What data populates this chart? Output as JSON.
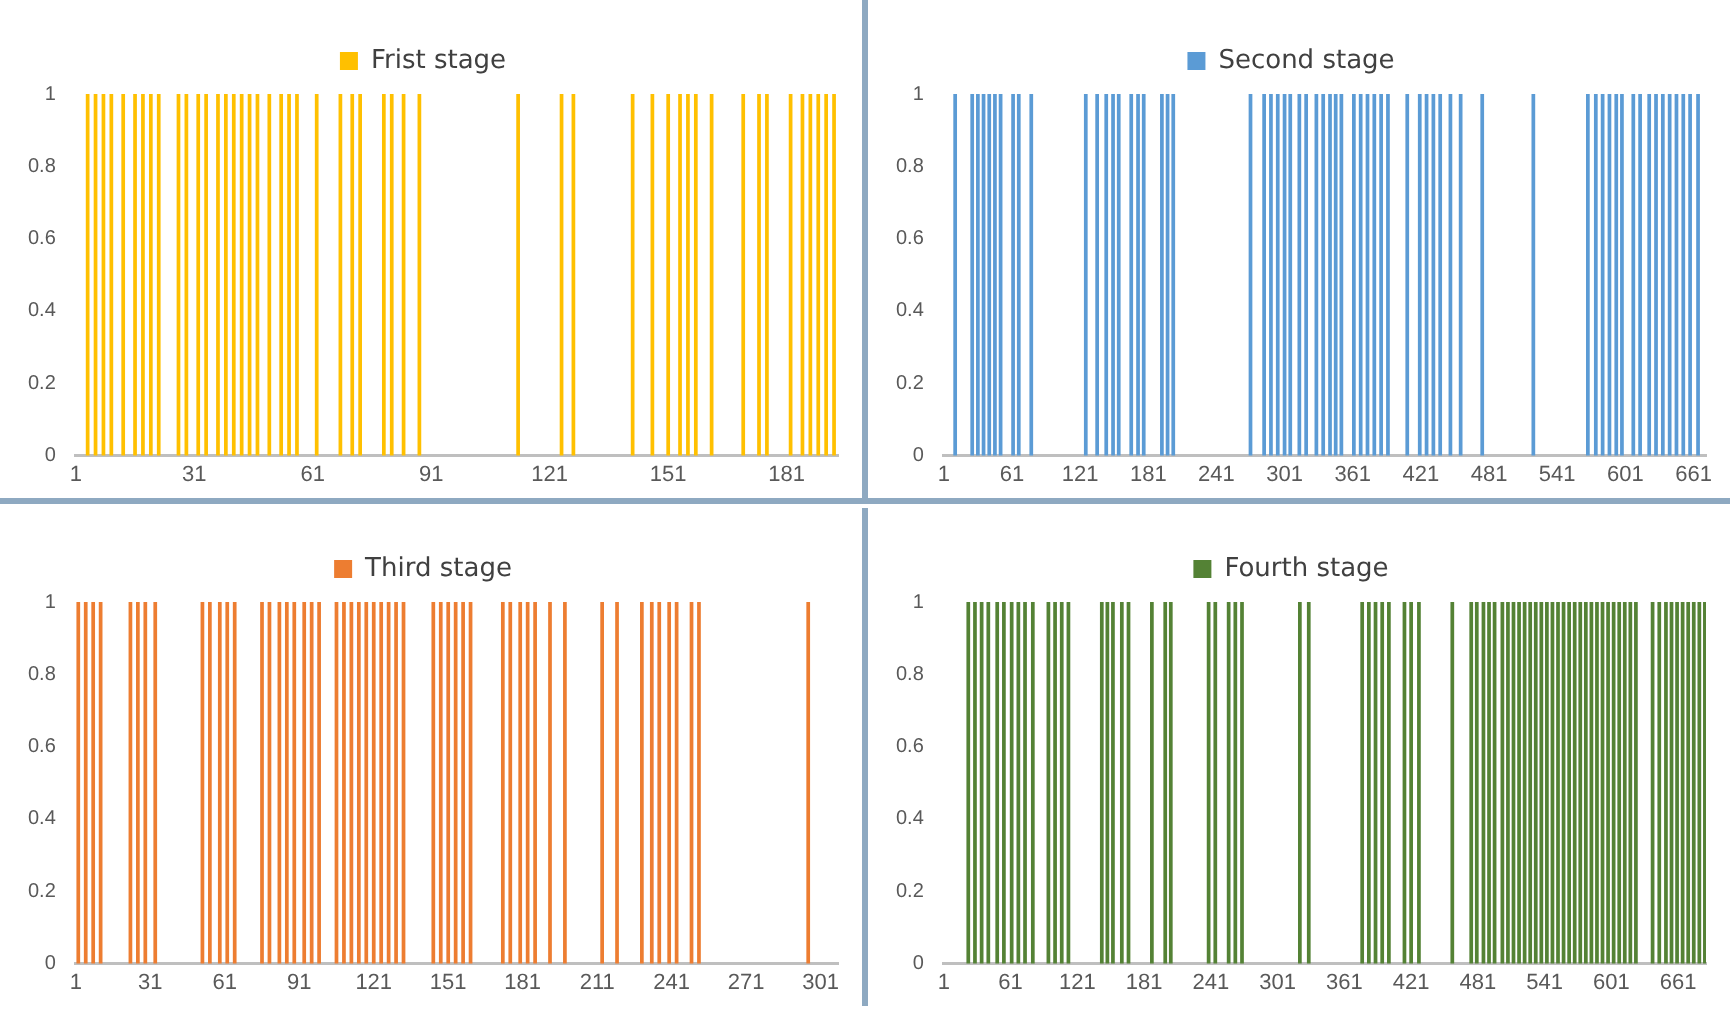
{
  "chart_data": [
    {
      "type": "bar",
      "xlim": [
        1,
        194
      ],
      "xticks": [
        1,
        31,
        61,
        91,
        121,
        151,
        181
      ],
      "ylim": [
        0,
        1
      ],
      "yticks": [
        0,
        0.2,
        0.4,
        0.6,
        0.8,
        1
      ],
      "legend": "top",
      "x": [
        4,
        6,
        8,
        10,
        13,
        16,
        18,
        20,
        22,
        27,
        29,
        32,
        34,
        37,
        39,
        41,
        43,
        45,
        47,
        50,
        53,
        55,
        57,
        62,
        68,
        71,
        73,
        79,
        81,
        84,
        88,
        113,
        124,
        127,
        142,
        147,
        151,
        154,
        156,
        158,
        162,
        170,
        174,
        176,
        182,
        185,
        187,
        189,
        191,
        193
      ],
      "series": [
        {
          "name": "Frist stage",
          "color": "#ffc000",
          "values": [
            1,
            1,
            1,
            1,
            1,
            1,
            1,
            1,
            1,
            1,
            1,
            1,
            1,
            1,
            1,
            1,
            1,
            1,
            1,
            1,
            1,
            1,
            1,
            1,
            1,
            1,
            1,
            1,
            1,
            1,
            1,
            1,
            1,
            1,
            1,
            1,
            1,
            1,
            1,
            1,
            1,
            1,
            1,
            1,
            1,
            1,
            1,
            1,
            1,
            1
          ]
        }
      ]
    },
    {
      "type": "bar",
      "xlim": [
        1,
        672
      ],
      "xticks": [
        1,
        61,
        121,
        181,
        241,
        301,
        361,
        421,
        481,
        541,
        601,
        661
      ],
      "ylim": [
        0,
        1
      ],
      "yticks": [
        0,
        0.2,
        0.4,
        0.6,
        0.8,
        1
      ],
      "legend": "top",
      "x": [
        11,
        26,
        31,
        36,
        41,
        46,
        51,
        62,
        67,
        78,
        126,
        136,
        144,
        150,
        155,
        166,
        172,
        177,
        193,
        198,
        203,
        271,
        283,
        289,
        295,
        301,
        306,
        314,
        320,
        329,
        335,
        341,
        346,
        351,
        362,
        368,
        374,
        380,
        386,
        392,
        409,
        420,
        426,
        432,
        438,
        447,
        456,
        475,
        520,
        568,
        575,
        581,
        587,
        593,
        598,
        608,
        614,
        622,
        628,
        634,
        640,
        646,
        652,
        658,
        665
      ],
      "series": [
        {
          "name": "Second stage",
          "color": "#5b9bd5",
          "values": [
            1,
            1,
            1,
            1,
            1,
            1,
            1,
            1,
            1,
            1,
            1,
            1,
            1,
            1,
            1,
            1,
            1,
            1,
            1,
            1,
            1,
            1,
            1,
            1,
            1,
            1,
            1,
            1,
            1,
            1,
            1,
            1,
            1,
            1,
            1,
            1,
            1,
            1,
            1,
            1,
            1,
            1,
            1,
            1,
            1,
            1,
            1,
            1,
            1,
            1,
            1,
            1,
            1,
            1,
            1,
            1,
            1,
            1,
            1,
            1,
            1,
            1,
            1,
            1,
            1
          ]
        }
      ]
    },
    {
      "type": "bar",
      "xlim": [
        1,
        308
      ],
      "xticks": [
        1,
        31,
        61,
        91,
        121,
        151,
        181,
        211,
        241,
        271,
        301
      ],
      "ylim": [
        0,
        1
      ],
      "yticks": [
        0,
        0.2,
        0.4,
        0.6,
        0.8,
        1
      ],
      "legend": "top",
      "x": [
        2,
        5,
        8,
        11,
        23,
        26,
        29,
        33,
        52,
        55,
        59,
        62,
        65,
        76,
        79,
        83,
        86,
        89,
        93,
        96,
        99,
        106,
        109,
        112,
        115,
        118,
        121,
        124,
        127,
        130,
        133,
        145,
        148,
        151,
        154,
        157,
        160,
        173,
        176,
        180,
        183,
        186,
        192,
        198,
        213,
        219,
        229,
        233,
        236,
        240,
        243,
        249,
        252,
        296
      ],
      "series": [
        {
          "name": "Third stage",
          "color": "#ed7d31",
          "values": [
            1,
            1,
            1,
            1,
            1,
            1,
            1,
            1,
            1,
            1,
            1,
            1,
            1,
            1,
            1,
            1,
            1,
            1,
            1,
            1,
            1,
            1,
            1,
            1,
            1,
            1,
            1,
            1,
            1,
            1,
            1,
            1,
            1,
            1,
            1,
            1,
            1,
            1,
            1,
            1,
            1,
            1,
            1,
            1,
            1,
            1,
            1,
            1,
            1,
            1,
            1,
            1,
            1,
            1
          ]
        }
      ]
    },
    {
      "type": "bar",
      "xlim": [
        1,
        686
      ],
      "xticks": [
        1,
        61,
        121,
        181,
        241,
        301,
        361,
        421,
        481,
        541,
        601,
        661
      ],
      "ylim": [
        0,
        1
      ],
      "yticks": [
        0,
        0.2,
        0.4,
        0.6,
        0.8,
        1
      ],
      "legend": "top",
      "x": [
        23,
        29,
        35,
        41,
        49,
        55,
        62,
        68,
        74,
        81,
        95,
        101,
        107,
        113,
        143,
        148,
        153,
        161,
        167,
        188,
        200,
        205,
        239,
        245,
        257,
        263,
        269,
        321,
        329,
        377,
        383,
        389,
        395,
        401,
        415,
        421,
        428,
        458,
        475,
        480,
        486,
        491,
        496,
        503,
        508,
        513,
        518,
        523,
        528,
        533,
        538,
        543,
        548,
        553,
        558,
        563,
        568,
        573,
        578,
        583,
        588,
        593,
        598,
        603,
        608,
        613,
        618,
        623,
        638,
        644,
        650,
        655,
        660,
        665,
        670,
        675,
        680,
        685
      ],
      "series": [
        {
          "name": "Fourth stage",
          "color": "#548235",
          "values": [
            1,
            1,
            1,
            1,
            1,
            1,
            1,
            1,
            1,
            1,
            1,
            1,
            1,
            1,
            1,
            1,
            1,
            1,
            1,
            1,
            1,
            1,
            1,
            1,
            1,
            1,
            1,
            1,
            1,
            1,
            1,
            1,
            1,
            1,
            1,
            1,
            1,
            1,
            1,
            1,
            1,
            1,
            1,
            1,
            1,
            1,
            1,
            1,
            1,
            1,
            1,
            1,
            1,
            1,
            1,
            1,
            1,
            1,
            1,
            1,
            1,
            1,
            1,
            1,
            1,
            1,
            1,
            1,
            1,
            1,
            1,
            1,
            1,
            1,
            1,
            1,
            1,
            1
          ]
        }
      ]
    }
  ]
}
